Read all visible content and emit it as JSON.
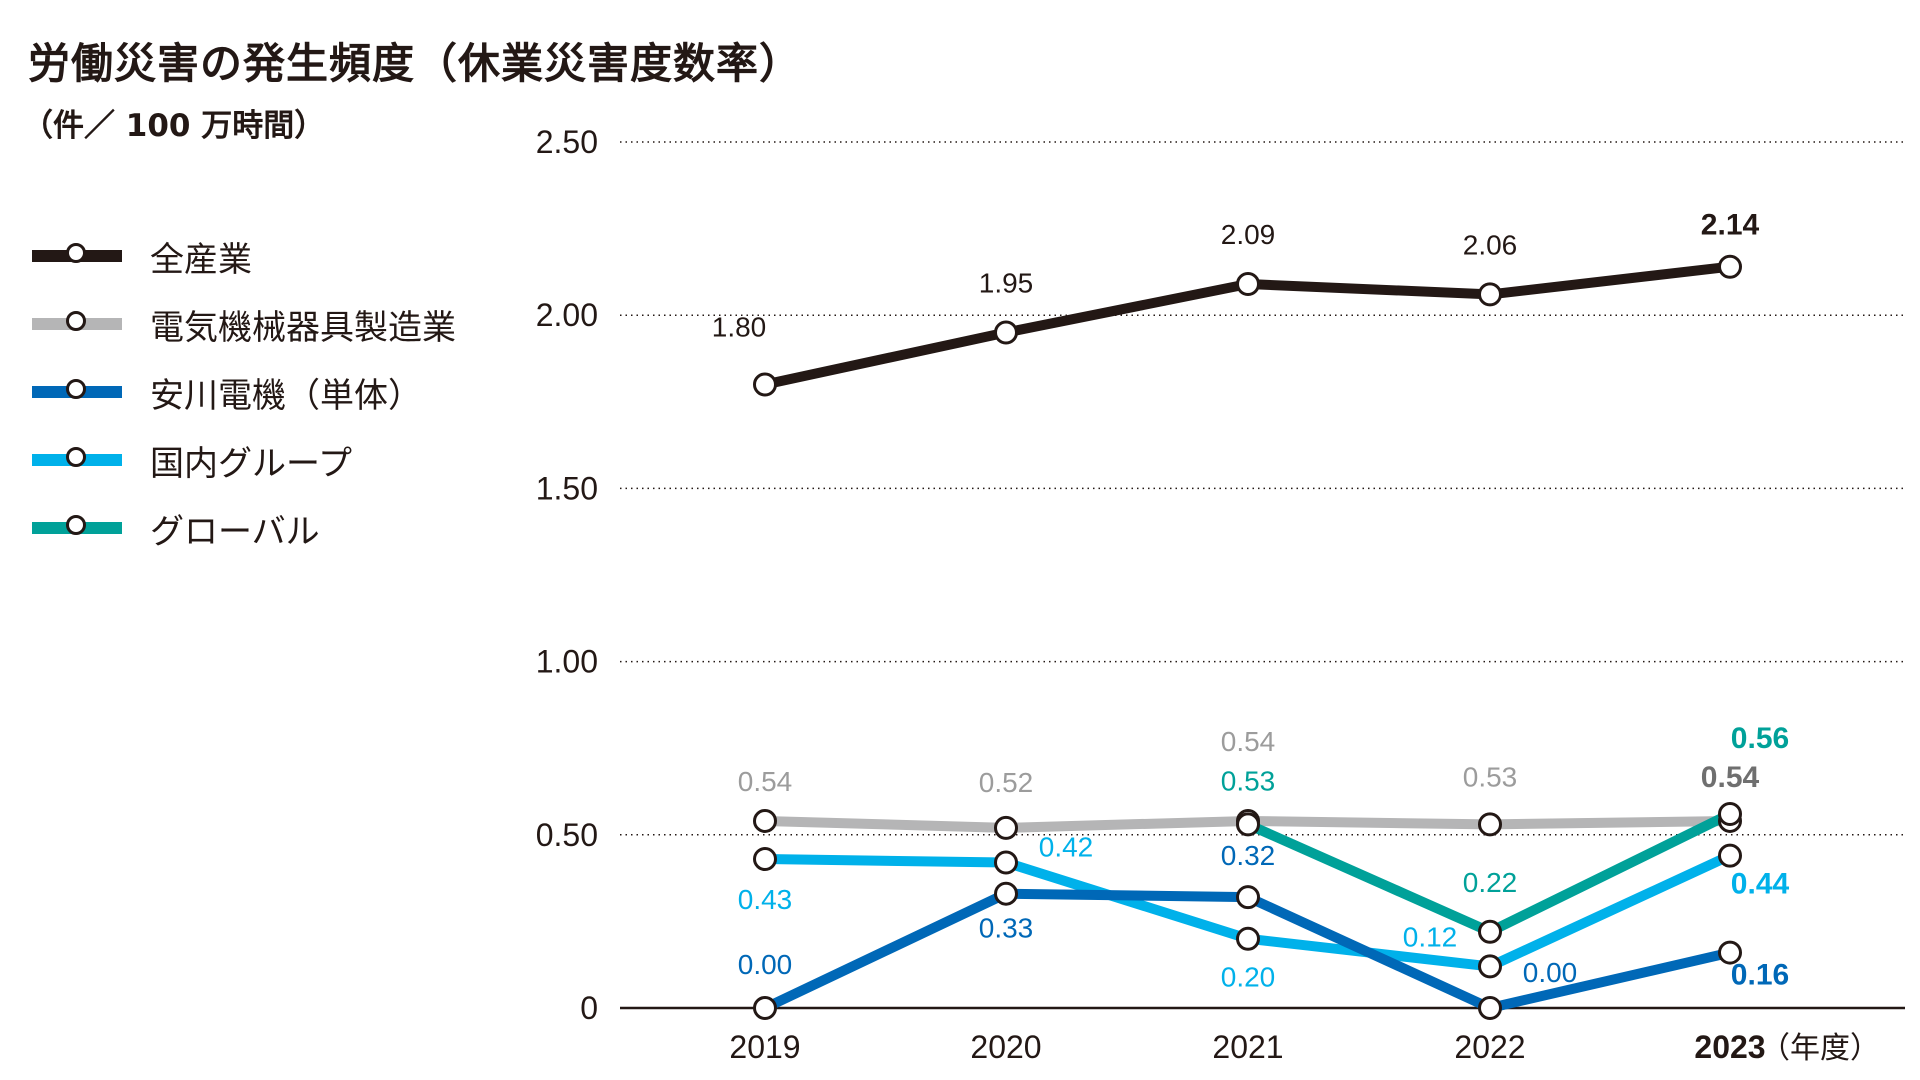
{
  "title": "労働災害の発生頻度（休業災害度数率）",
  "subtitle": "（件／ 100 万時間）",
  "chart_data": {
    "type": "line",
    "categories": [
      "2019",
      "2020",
      "2021",
      "2022",
      "2023"
    ],
    "x_unit": "（年度）",
    "y_ticks": [
      "2.50",
      "2.00",
      "1.50",
      "1.00",
      "0.50",
      "0"
    ],
    "ylim": [
      0,
      2.5
    ],
    "grid": "horizontal-dotted",
    "legend_position": "left",
    "series": [
      {
        "name": "全産業",
        "color": "#231815",
        "values": [
          1.8,
          1.95,
          2.09,
          2.06,
          2.14
        ],
        "labels": [
          "1.80",
          "1.95",
          "2.09",
          "2.06",
          "2.14"
        ]
      },
      {
        "name": "電気機械器具製造業",
        "color": "#b5b5b6",
        "values": [
          0.54,
          0.52,
          0.54,
          0.53,
          0.54
        ],
        "labels": [
          "0.54",
          "0.52",
          "0.54",
          "0.53",
          "0.54"
        ]
      },
      {
        "name": "安川電機（単体）",
        "color": "#0068b7",
        "values": [
          0.0,
          0.33,
          0.32,
          0.0,
          0.16
        ],
        "labels": [
          "0.00",
          "0.33",
          "0.32",
          "0.00",
          "0.16"
        ]
      },
      {
        "name": "国内グループ",
        "color": "#00b1ea",
        "values": [
          0.43,
          0.42,
          0.2,
          0.12,
          0.44
        ],
        "labels": [
          "0.43",
          "0.42",
          "0.20",
          "0.12",
          "0.44"
        ]
      },
      {
        "name": "グローバル",
        "color": "#00a199",
        "values": [
          null,
          null,
          0.53,
          0.22,
          0.56
        ],
        "labels": [
          null,
          null,
          "0.53",
          "0.22",
          "0.56"
        ]
      }
    ]
  }
}
